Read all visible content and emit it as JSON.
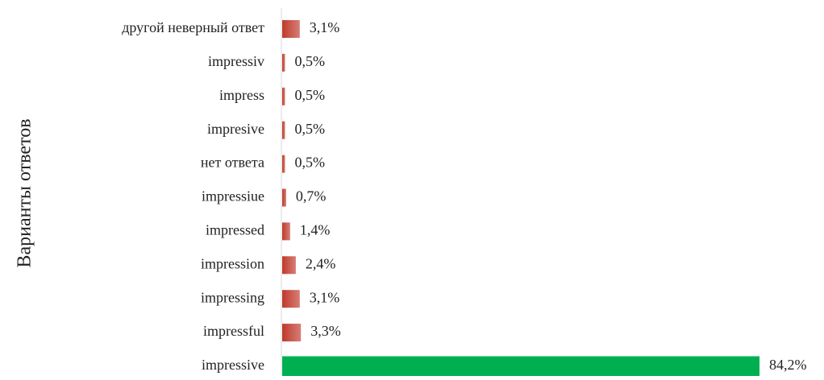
{
  "chart_data": {
    "type": "bar",
    "orientation": "horizontal",
    "y_label": "Варианты ответов",
    "categories": [
      "другой неверный ответ",
      "impressiv",
      "impress",
      "impresive",
      "нет ответа",
      "impressiue",
      "impressed",
      "impression",
      "impressing",
      "impressful",
      "impressive"
    ],
    "values": [
      3.1,
      0.5,
      0.5,
      0.5,
      0.5,
      0.7,
      1.4,
      2.4,
      3.1,
      3.3,
      84.2
    ],
    "value_labels": [
      "3,1%",
      "0,5%",
      "0,5%",
      "0,5%",
      "0,5%",
      "0,7%",
      "1,4%",
      "2,4%",
      "3,1%",
      "3,3%",
      "84,2%"
    ],
    "colors": [
      "#c0392b",
      "#c0392b",
      "#c0392b",
      "#c0392b",
      "#c0392b",
      "#c0392b",
      "#c0392b",
      "#c0392b",
      "#c0392b",
      "#c0392b",
      "#00b050"
    ]
  }
}
